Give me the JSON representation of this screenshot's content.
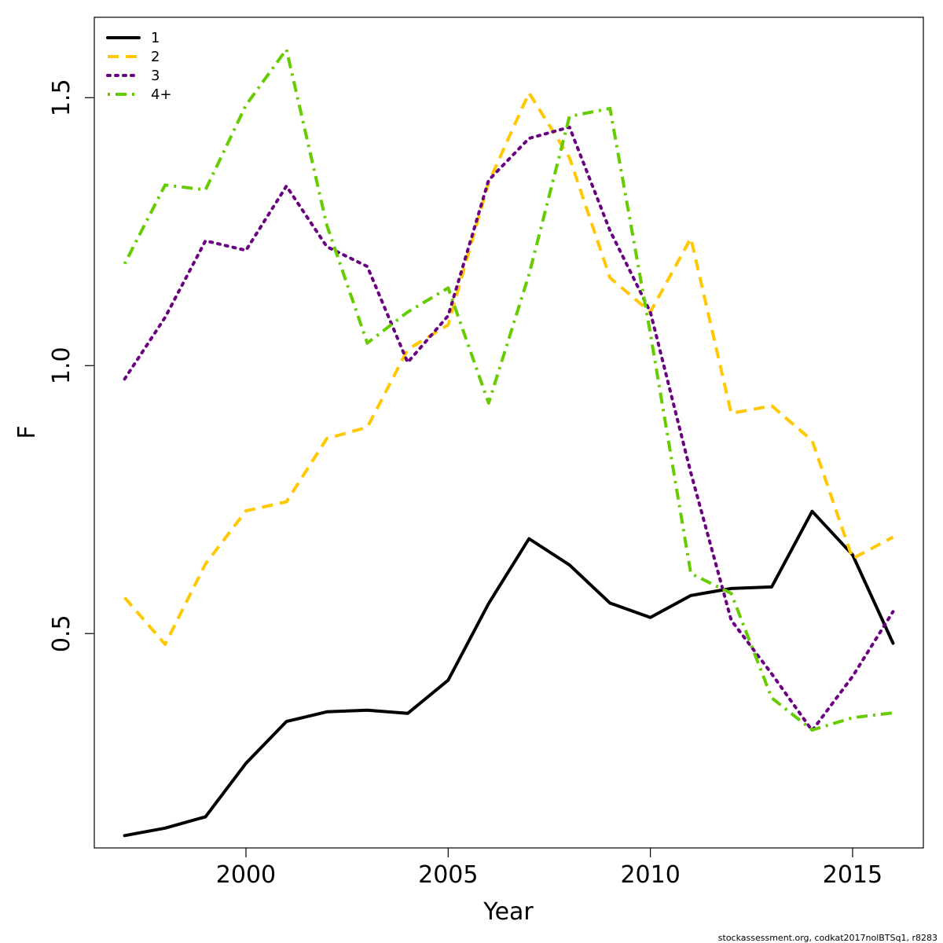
{
  "chart_data": {
    "type": "line",
    "xlabel": "Year",
    "ylabel": "F",
    "xlim": [
      1996.25,
      2016.75
    ],
    "ylim": [
      0.1,
      1.65
    ],
    "x_ticks": [
      2000,
      2005,
      2010,
      2015
    ],
    "x_tick_labels": [
      "2000",
      "2005",
      "2010",
      "2015"
    ],
    "y_ticks": [
      0.5,
      1.0,
      1.5
    ],
    "y_tick_labels": [
      "0.5",
      "1.0",
      "1.5"
    ],
    "grid": false,
    "legend_position": "top-left",
    "x": [
      1997,
      1998,
      1999,
      2000,
      2001,
      2002,
      2003,
      2004,
      2005,
      2006,
      2007,
      2008,
      2009,
      2010,
      2011,
      2012,
      2013,
      2014,
      2015,
      2016
    ],
    "series": [
      {
        "name": "1",
        "color": "#000000",
        "dash": "solid",
        "values": [
          0.123,
          0.137,
          0.158,
          0.258,
          0.336,
          0.354,
          0.357,
          0.351,
          0.413,
          0.556,
          0.677,
          0.628,
          0.557,
          0.53,
          0.571,
          0.584,
          0.587,
          0.728,
          0.647,
          0.482
        ]
      },
      {
        "name": "2",
        "color": "#FFC800",
        "dash": "dashed",
        "values": [
          0.567,
          0.48,
          0.63,
          0.729,
          0.746,
          0.864,
          0.885,
          1.03,
          1.076,
          1.342,
          1.509,
          1.388,
          1.164,
          1.1,
          1.238,
          0.911,
          0.925,
          0.86,
          0.64,
          0.68
        ]
      },
      {
        "name": "3",
        "color": "#6A0080",
        "dash": "dotted",
        "values": [
          0.975,
          1.09,
          1.233,
          1.215,
          1.335,
          1.222,
          1.185,
          1.006,
          1.093,
          1.346,
          1.424,
          1.445,
          1.252,
          1.1,
          0.8,
          0.525,
          0.425,
          0.319,
          0.42,
          0.541
        ]
      },
      {
        "name": "4+",
        "color": "#66CC00",
        "dash": "dotdash",
        "values": [
          1.19,
          1.337,
          1.328,
          1.486,
          1.59,
          1.262,
          1.042,
          1.1,
          1.145,
          0.93,
          1.17,
          1.465,
          1.48,
          1.06,
          0.612,
          0.575,
          0.38,
          0.32,
          0.343,
          0.352
        ]
      }
    ]
  },
  "footnote": "stockassessment.org, codkat2017nolBTSq1, r8283"
}
